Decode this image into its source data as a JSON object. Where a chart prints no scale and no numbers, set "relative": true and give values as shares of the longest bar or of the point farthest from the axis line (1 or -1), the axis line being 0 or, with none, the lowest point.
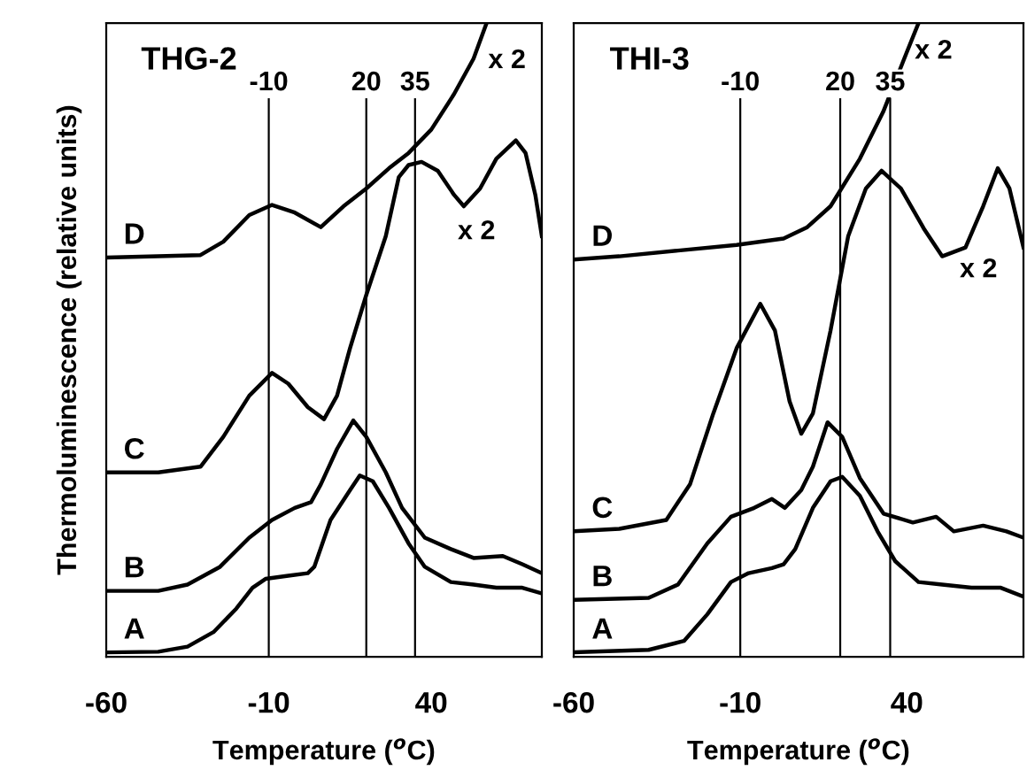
{
  "chart_data": [
    {
      "type": "line",
      "title": "THG-2",
      "xlabel": "Temperature ($^{o}$C)",
      "ylabel": "Thermoluminescence (relative units)",
      "relative": true,
      "xlim": [
        -60,
        74
      ],
      "xticks": [
        -60,
        -10,
        40
      ],
      "grid": false,
      "legend": false,
      "series": [
        {
          "name": "A",
          "color": "#000000",
          "x": [
            -60,
            -44,
            -35,
            -27,
            -20,
            -15,
            -11,
            -4,
            2,
            4,
            9,
            15,
            18,
            22,
            27,
            33,
            38,
            46,
            53,
            60,
            68,
            74
          ],
          "values": [
            0.007,
            0.008,
            0.016,
            0.039,
            0.076,
            0.109,
            0.123,
            0.128,
            0.132,
            0.142,
            0.216,
            0.263,
            0.286,
            0.277,
            0.235,
            0.179,
            0.142,
            0.118,
            0.114,
            0.109,
            0.109,
            0.1
          ]
        },
        {
          "name": "B",
          "color": "#000000",
          "x": [
            -60,
            -44,
            -35,
            -25,
            -16,
            -9,
            -2,
            3,
            6,
            11,
            16,
            20,
            26,
            31,
            38,
            46,
            53,
            62,
            68,
            74
          ],
          "values": [
            0.104,
            0.104,
            0.114,
            0.142,
            0.188,
            0.216,
            0.235,
            0.244,
            0.272,
            0.328,
            0.373,
            0.347,
            0.291,
            0.235,
            0.188,
            0.17,
            0.156,
            0.159,
            0.146,
            0.132
          ]
        },
        {
          "name": "C",
          "color": "#000000",
          "x": [
            -60,
            -44,
            -31,
            -24,
            -16,
            -9,
            -4,
            2,
            7,
            11,
            15,
            20,
            26,
            30,
            33,
            37,
            42,
            47,
            50,
            55,
            60,
            66,
            69,
            72,
            74
          ],
          "values": [
            0.291,
            0.291,
            0.3,
            0.347,
            0.412,
            0.448,
            0.431,
            0.394,
            0.375,
            0.412,
            0.487,
            0.571,
            0.664,
            0.757,
            0.776,
            0.781,
            0.767,
            0.729,
            0.711,
            0.739,
            0.786,
            0.815,
            0.795,
            0.729,
            0.664
          ]
        },
        {
          "name": "D",
          "color": "#000000",
          "x": [
            -60,
            -44,
            -31,
            -24,
            -16,
            -9,
            -2,
            6,
            13,
            20,
            27,
            33,
            40,
            47,
            53,
            57
          ],
          "values": [
            0.63,
            0.632,
            0.634,
            0.655,
            0.697,
            0.713,
            0.701,
            0.678,
            0.711,
            0.739,
            0.771,
            0.795,
            0.832,
            0.888,
            0.944,
            1.0
          ]
        }
      ],
      "ref_lines": [
        {
          "axis": "x",
          "value": -10,
          "label": "-10",
          "color": "#000000"
        },
        {
          "axis": "x",
          "value": 20,
          "label": "20",
          "color": "#000000"
        },
        {
          "axis": "x",
          "value": 35,
          "label": "35",
          "color": "#000000"
        }
      ],
      "annotations": [
        "x 2",
        "x 2"
      ]
    },
    {
      "type": "line",
      "title": "THI-3",
      "xlabel": "Temperature ($^{o}$C)",
      "relative": true,
      "xlim": [
        -60,
        75
      ],
      "xticks": [
        -60,
        -10,
        40
      ],
      "grid": false,
      "legend": false,
      "series": [
        {
          "name": "A",
          "color": "#000000",
          "x": [
            -60,
            -37.5,
            -26.9,
            -19.9,
            -12.8,
            -7.5,
            -0.5,
            3.0,
            6.5,
            11.8,
            17.1,
            20.6,
            25.9,
            31.2,
            36.5,
            43.5,
            50.6,
            59.4,
            68.2,
            75
          ],
          "values": [
            0.007,
            0.011,
            0.025,
            0.067,
            0.118,
            0.132,
            0.14,
            0.146,
            0.17,
            0.235,
            0.277,
            0.284,
            0.254,
            0.198,
            0.151,
            0.118,
            0.114,
            0.109,
            0.109,
            0.095
          ]
        },
        {
          "name": "B",
          "color": "#000000",
          "x": [
            -60,
            -37.5,
            -28.7,
            -19.9,
            -12.8,
            -5.8,
            -0.5,
            3.4,
            8.3,
            11.8,
            16.2,
            20.6,
            25.9,
            33.0,
            41.8,
            48.8,
            54.1,
            62.9,
            69.9,
            75
          ],
          "values": [
            0.09,
            0.093,
            0.114,
            0.179,
            0.221,
            0.235,
            0.249,
            0.235,
            0.263,
            0.3,
            0.37,
            0.347,
            0.282,
            0.226,
            0.212,
            0.221,
            0.198,
            0.207,
            0.198,
            0.188
          ]
        },
        {
          "name": "C",
          "color": "#000000",
          "x": [
            -60,
            -46.3,
            -32.2,
            -25.1,
            -18.1,
            -11.1,
            -4.0,
            0.4,
            4.8,
            8.3,
            11.8,
            17.1,
            22.4,
            27.7,
            32.4,
            38.2,
            45.3,
            50.6,
            57.6,
            62.9,
            67.3,
            70.8,
            75
          ],
          "values": [
            0.198,
            0.202,
            0.216,
            0.272,
            0.384,
            0.487,
            0.557,
            0.515,
            0.403,
            0.352,
            0.384,
            0.515,
            0.664,
            0.739,
            0.767,
            0.739,
            0.674,
            0.632,
            0.646,
            0.711,
            0.771,
            0.739,
            0.646
          ]
        },
        {
          "name": "D",
          "color": "#000000",
          "x": [
            -60,
            -46.3,
            -28.7,
            -11.1,
            3.0,
            10.1,
            17.1,
            25.9,
            32.9,
            39.9,
            43.5
          ],
          "values": [
            0.627,
            0.632,
            0.641,
            0.65,
            0.66,
            0.678,
            0.711,
            0.786,
            0.86,
            0.953,
            1.0
          ]
        }
      ],
      "ref_lines": [
        {
          "axis": "x",
          "value": -10,
          "label": "-10",
          "color": "#000000"
        },
        {
          "axis": "x",
          "value": 20,
          "label": "20",
          "color": "#000000"
        },
        {
          "axis": "x",
          "value": 35,
          "label": "35",
          "color": "#000000"
        }
      ],
      "annotations": [
        "x 2",
        "x 2"
      ]
    }
  ]
}
